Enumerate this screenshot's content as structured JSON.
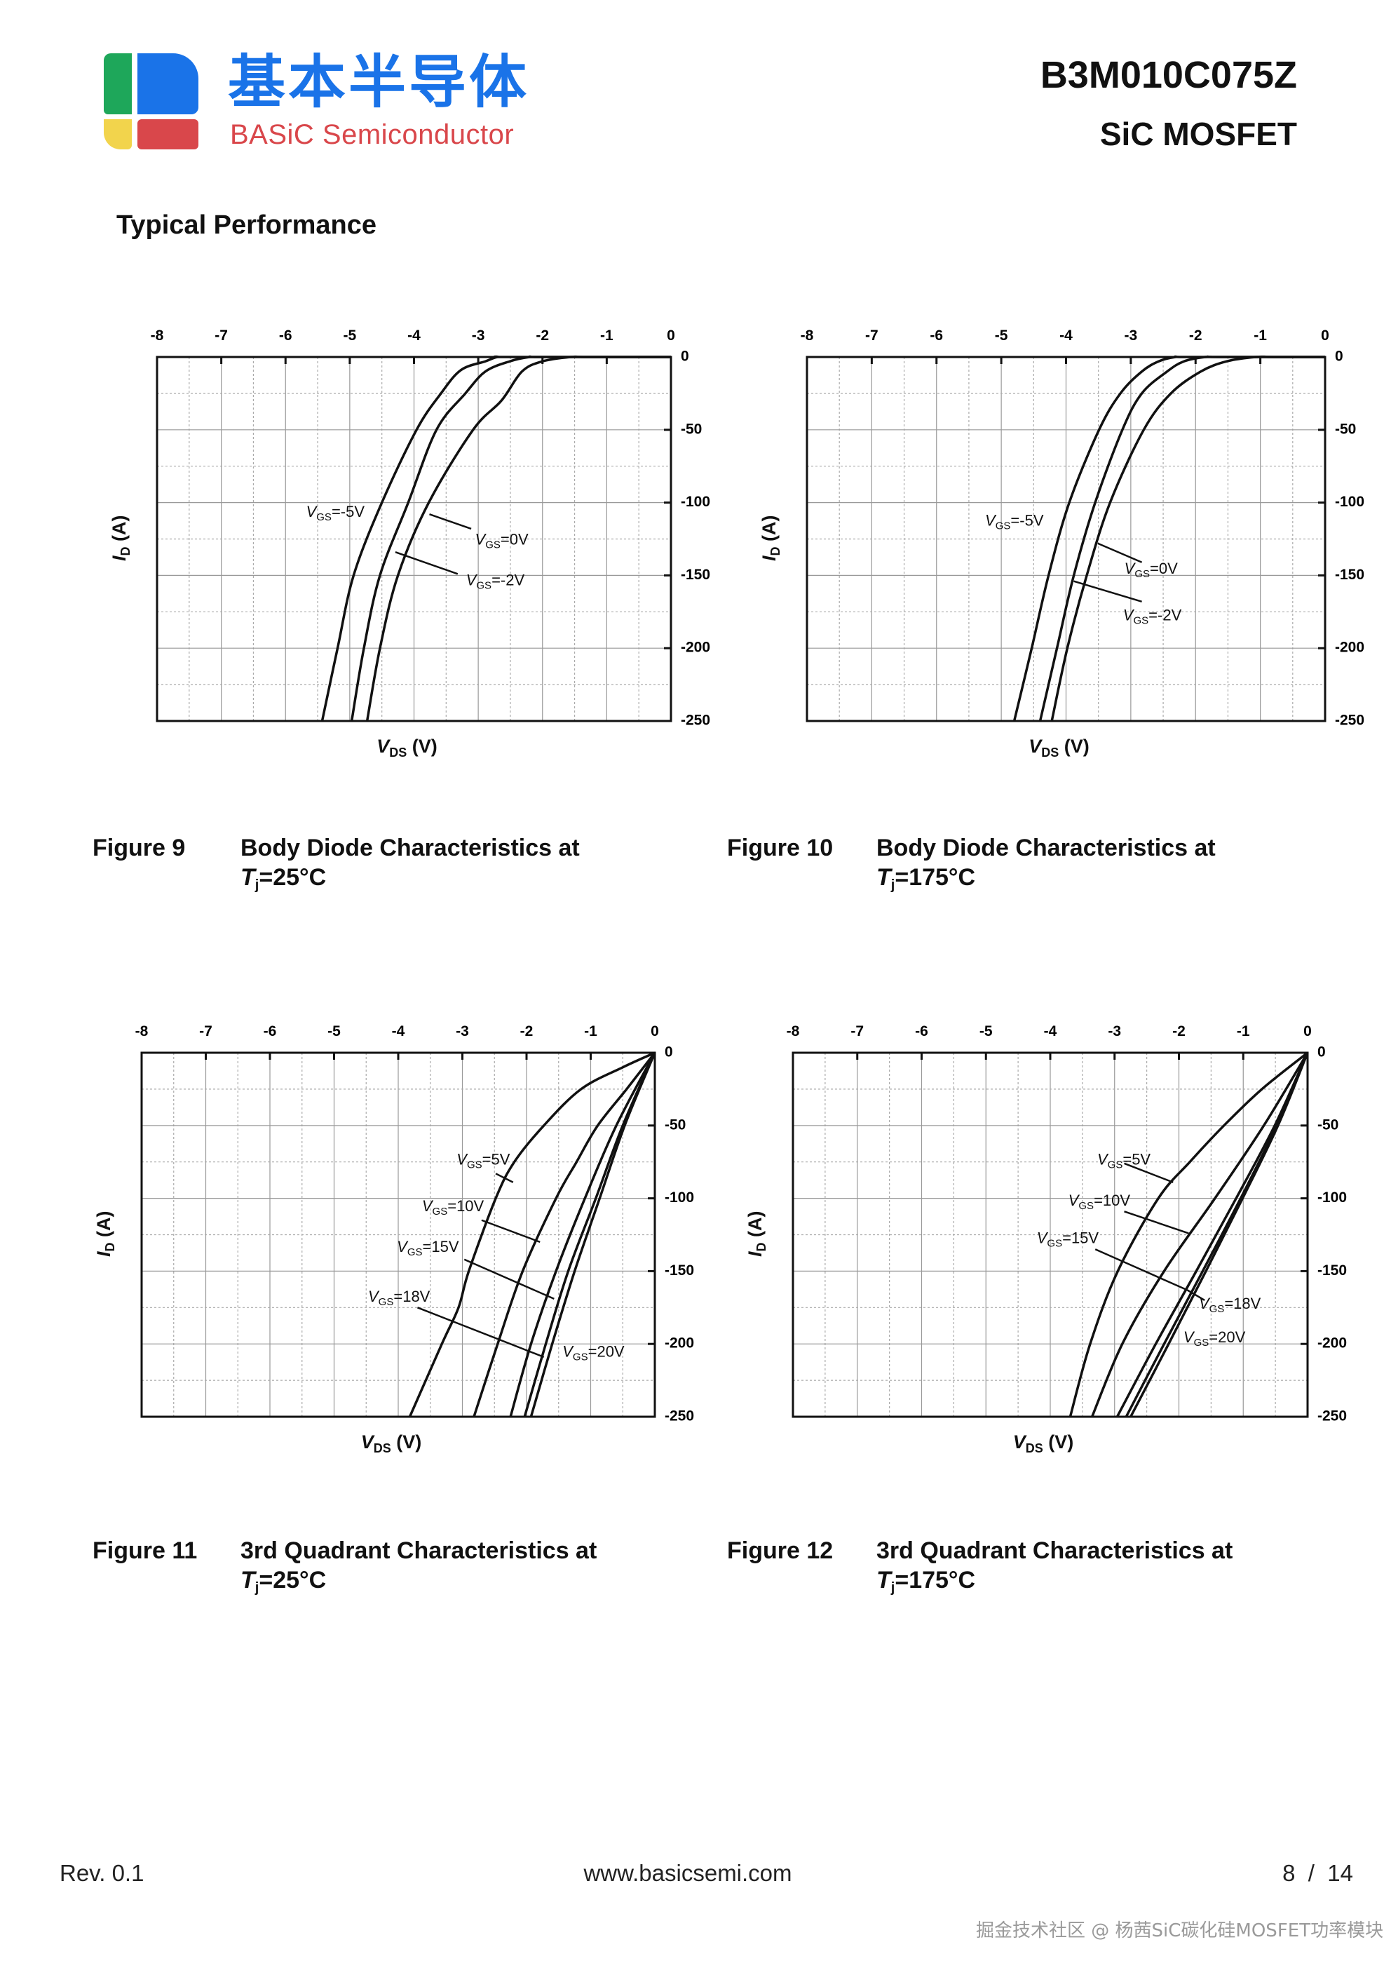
{
  "header": {
    "logo_cn": "基本半导体",
    "logo_en": "BASiC Semiconductor",
    "part_number": "B3M010C075Z",
    "part_type": "SiC MOSFET",
    "logo_colors": {
      "green": "#1ea75a",
      "blue": "#1a73e8",
      "yellow": "#f2d44c",
      "red": "#d9474b"
    }
  },
  "section_title": "Typical Performance",
  "footer": {
    "revision": "Rev. 0.1",
    "url": "www.basicsemi.com",
    "page": "8  /  14"
  },
  "watermark": "掘金技术社区 @ 杨茜SiC碳化硅MOSFET功率模块",
  "chart_data": [
    {
      "type": "line",
      "figure": "Figure 9",
      "title": "Body Diode Characteristics at",
      "temp": {
        "symbol": "T",
        "sub": "j",
        "value": "=25°C"
      },
      "xlabel": {
        "symbol": "V",
        "sub": "DS",
        "unit": " (V)"
      },
      "ylabel": {
        "symbol": "I",
        "sub": "D",
        "unit": " (A)"
      },
      "xlim": [
        -8,
        0
      ],
      "ylim": [
        -250,
        0
      ],
      "xticks": [
        "-8",
        "-7",
        "-6",
        "-5",
        "-4",
        "-3",
        "-2",
        "-1",
        "0"
      ],
      "yticks": [
        "0",
        "-50",
        "-100",
        "-150",
        "-200",
        "-250"
      ],
      "grid": true,
      "series": [
        {
          "name": {
            "symbol": "V",
            "sub": "GS",
            "value": "=-5V"
          },
          "x": [
            0,
            -2.5,
            -2.7,
            -2.89,
            -3.27,
            -3.58,
            -3.96,
            -4.5,
            -4.94,
            -5.19,
            -5.43
          ],
          "y": [
            0,
            0,
            0,
            -3,
            -9,
            -25,
            -50,
            -100,
            -150,
            -200,
            -250
          ]
        },
        {
          "name": {
            "symbol": "V",
            "sub": "GS",
            "value": "=-2V"
          },
          "x": [
            0,
            -2.0,
            -2.2,
            -2.51,
            -2.89,
            -3.2,
            -3.65,
            -4.09,
            -4.53,
            -4.78,
            -4.97
          ],
          "y": [
            0,
            0,
            0,
            -3,
            -10,
            -25,
            -50,
            -100,
            -150,
            -200,
            -250
          ]
        },
        {
          "name": {
            "symbol": "V",
            "sub": "GS",
            "value": "=0V"
          },
          "x": [
            0,
            -1.3,
            -1.56,
            -2.0,
            -2.32,
            -2.64,
            -3.08,
            -3.77,
            -4.25,
            -4.53,
            -4.73
          ],
          "y": [
            0,
            0,
            0,
            -3,
            -10,
            -30,
            -50,
            -100,
            -150,
            -200,
            -250
          ]
        }
      ]
    },
    {
      "type": "line",
      "figure": "Figure 10",
      "title": "Body Diode Characteristics at",
      "temp": {
        "symbol": "T",
        "sub": "j",
        "value": "=175°C"
      },
      "xlabel": {
        "symbol": "V",
        "sub": "DS",
        "unit": " (V)"
      },
      "ylabel": {
        "symbol": "I",
        "sub": "D",
        "unit": " (A)"
      },
      "xlim": [
        -8,
        0
      ],
      "ylim": [
        -250,
        0
      ],
      "xticks": [
        "-8",
        "-7",
        "-6",
        "-5",
        "-4",
        "-3",
        "-2",
        "-1",
        "0"
      ],
      "yticks": [
        "0",
        "-50",
        "-100",
        "-150",
        "-200",
        "-250"
      ],
      "grid": true,
      "series": [
        {
          "name": {
            "symbol": "V",
            "sub": "GS",
            "value": "=-5V"
          },
          "x": [
            0,
            -2.1,
            -2.31,
            -2.57,
            -2.83,
            -3.16,
            -3.49,
            -3.95,
            -4.27,
            -4.53,
            -4.8
          ],
          "y": [
            0,
            0,
            0,
            -3,
            -10,
            -25,
            -50,
            -100,
            -150,
            -200,
            -250
          ]
        },
        {
          "name": {
            "symbol": "V",
            "sub": "GS",
            "value": "=-2V"
          },
          "x": [
            0,
            -1.6,
            -1.85,
            -2.18,
            -2.44,
            -2.83,
            -3.13,
            -3.55,
            -3.88,
            -4.14,
            -4.4
          ],
          "y": [
            0,
            0,
            0,
            -3,
            -10,
            -25,
            -50,
            -100,
            -150,
            -200,
            -250
          ]
        },
        {
          "name": {
            "symbol": "V",
            "sub": "GS",
            "value": "=0V"
          },
          "x": [
            0,
            -0.8,
            -1.07,
            -1.52,
            -1.92,
            -2.38,
            -2.8,
            -3.32,
            -3.68,
            -3.98,
            -4.22
          ],
          "y": [
            0,
            0,
            0,
            -3,
            -10,
            -25,
            -50,
            -100,
            -150,
            -200,
            -250
          ]
        }
      ]
    },
    {
      "type": "line",
      "figure": "Figure 11",
      "title": "3rd Quadrant Characteristics at",
      "temp": {
        "symbol": "T",
        "sub": "j",
        "value": "=25°C"
      },
      "xlabel": {
        "symbol": "V",
        "sub": "DS",
        "unit": " (V)"
      },
      "ylabel": {
        "symbol": "I",
        "sub": "D",
        "unit": " (A)"
      },
      "xlim": [
        -8,
        0
      ],
      "ylim": [
        -250,
        0
      ],
      "xticks": [
        "-8",
        "-7",
        "-6",
        "-5",
        "-4",
        "-3",
        "-2",
        "-1",
        "0"
      ],
      "yticks": [
        "0",
        "-50",
        "-100",
        "-150",
        "-200",
        "-250"
      ],
      "grid": true,
      "series": [
        {
          "name": {
            "symbol": "V",
            "sub": "GS",
            "value": "=5V"
          },
          "x": [
            0,
            -0.5,
            -1.15,
            -1.73,
            -2.19,
            -2.48,
            -2.9,
            -3.06,
            -3.32,
            -3.82
          ],
          "y": [
            0,
            -10,
            -25,
            -50,
            -75,
            -100,
            -150,
            -175,
            -200,
            -250
          ]
        },
        {
          "name": {
            "symbol": "V",
            "sub": "GS",
            "value": "=10V"
          },
          "x": [
            0,
            -0.44,
            -0.89,
            -1.22,
            -1.54,
            -2.06,
            -2.45,
            -2.82
          ],
          "y": [
            0,
            -25,
            -50,
            -75,
            -100,
            -150,
            -200,
            -250
          ]
        },
        {
          "name": {
            "symbol": "V",
            "sub": "GS",
            "value": "=15V"
          },
          "x": [
            0,
            -0.6,
            -1.09,
            -1.54,
            -1.93,
            -2.25
          ],
          "y": [
            0,
            -50,
            -100,
            -150,
            -200,
            -250
          ]
        },
        {
          "name": {
            "symbol": "V",
            "sub": "GS",
            "value": "=18V"
          },
          "x": [
            0,
            -0.5,
            -0.92,
            -1.35,
            -1.7,
            -2.03
          ],
          "y": [
            0,
            -50,
            -100,
            -150,
            -200,
            -250
          ]
        },
        {
          "name": {
            "symbol": "V",
            "sub": "GS",
            "value": "=20V"
          },
          "x": [
            0,
            -0.47,
            -0.86,
            -1.25,
            -1.6,
            -1.93
          ],
          "y": [
            0,
            -50,
            -100,
            -150,
            -200,
            -250
          ]
        }
      ]
    },
    {
      "type": "line",
      "figure": "Figure 12",
      "title": "3rd Quadrant Characteristics at",
      "temp": {
        "symbol": "T",
        "sub": "j",
        "value": "=175°C"
      },
      "xlabel": {
        "symbol": "V",
        "sub": "DS",
        "unit": " (V)"
      },
      "ylabel": {
        "symbol": "I",
        "sub": "D",
        "unit": " (A)"
      },
      "xlim": [
        -8,
        0
      ],
      "ylim": [
        -250,
        0
      ],
      "xticks": [
        "-8",
        "-7",
        "-6",
        "-5",
        "-4",
        "-3",
        "-2",
        "-1",
        "0"
      ],
      "yticks": [
        "0",
        "-50",
        "-100",
        "-150",
        "-200",
        "-250"
      ],
      "grid": true,
      "series": [
        {
          "name": {
            "symbol": "V",
            "sub": "GS",
            "value": "=5V"
          },
          "x": [
            0,
            -0.71,
            -1.3,
            -1.83,
            -2.32,
            -2.95,
            -3.38,
            -3.69
          ],
          "y": [
            0,
            -25,
            -50,
            -75,
            -100,
            -150,
            -200,
            -250
          ]
        },
        {
          "name": {
            "symbol": "V",
            "sub": "GS",
            "value": "=10V"
          },
          "x": [
            0,
            -0.68,
            -1.44,
            -2.23,
            -2.88,
            -3.35
          ],
          "y": [
            0,
            -50,
            -100,
            -150,
            -200,
            -250
          ]
        },
        {
          "name": {
            "symbol": "V",
            "sub": "GS",
            "value": "=15V"
          },
          "x": [
            0,
            -0.51,
            -1.11,
            -1.73,
            -2.36,
            -2.96
          ],
          "y": [
            0,
            -50,
            -100,
            -150,
            -200,
            -250
          ]
        },
        {
          "name": {
            "symbol": "V",
            "sub": "GS",
            "value": "=18V"
          },
          "x": [
            0,
            -0.48,
            -1.04,
            -1.63,
            -2.23,
            -2.82
          ],
          "y": [
            0,
            -50,
            -100,
            -150,
            -200,
            -250
          ]
        },
        {
          "name": {
            "symbol": "V",
            "sub": "GS",
            "value": "=20V"
          },
          "x": [
            0,
            -0.46,
            -1.01,
            -1.58,
            -2.16,
            -2.75
          ],
          "y": [
            0,
            -50,
            -100,
            -150,
            -200,
            -250
          ]
        }
      ]
    }
  ]
}
